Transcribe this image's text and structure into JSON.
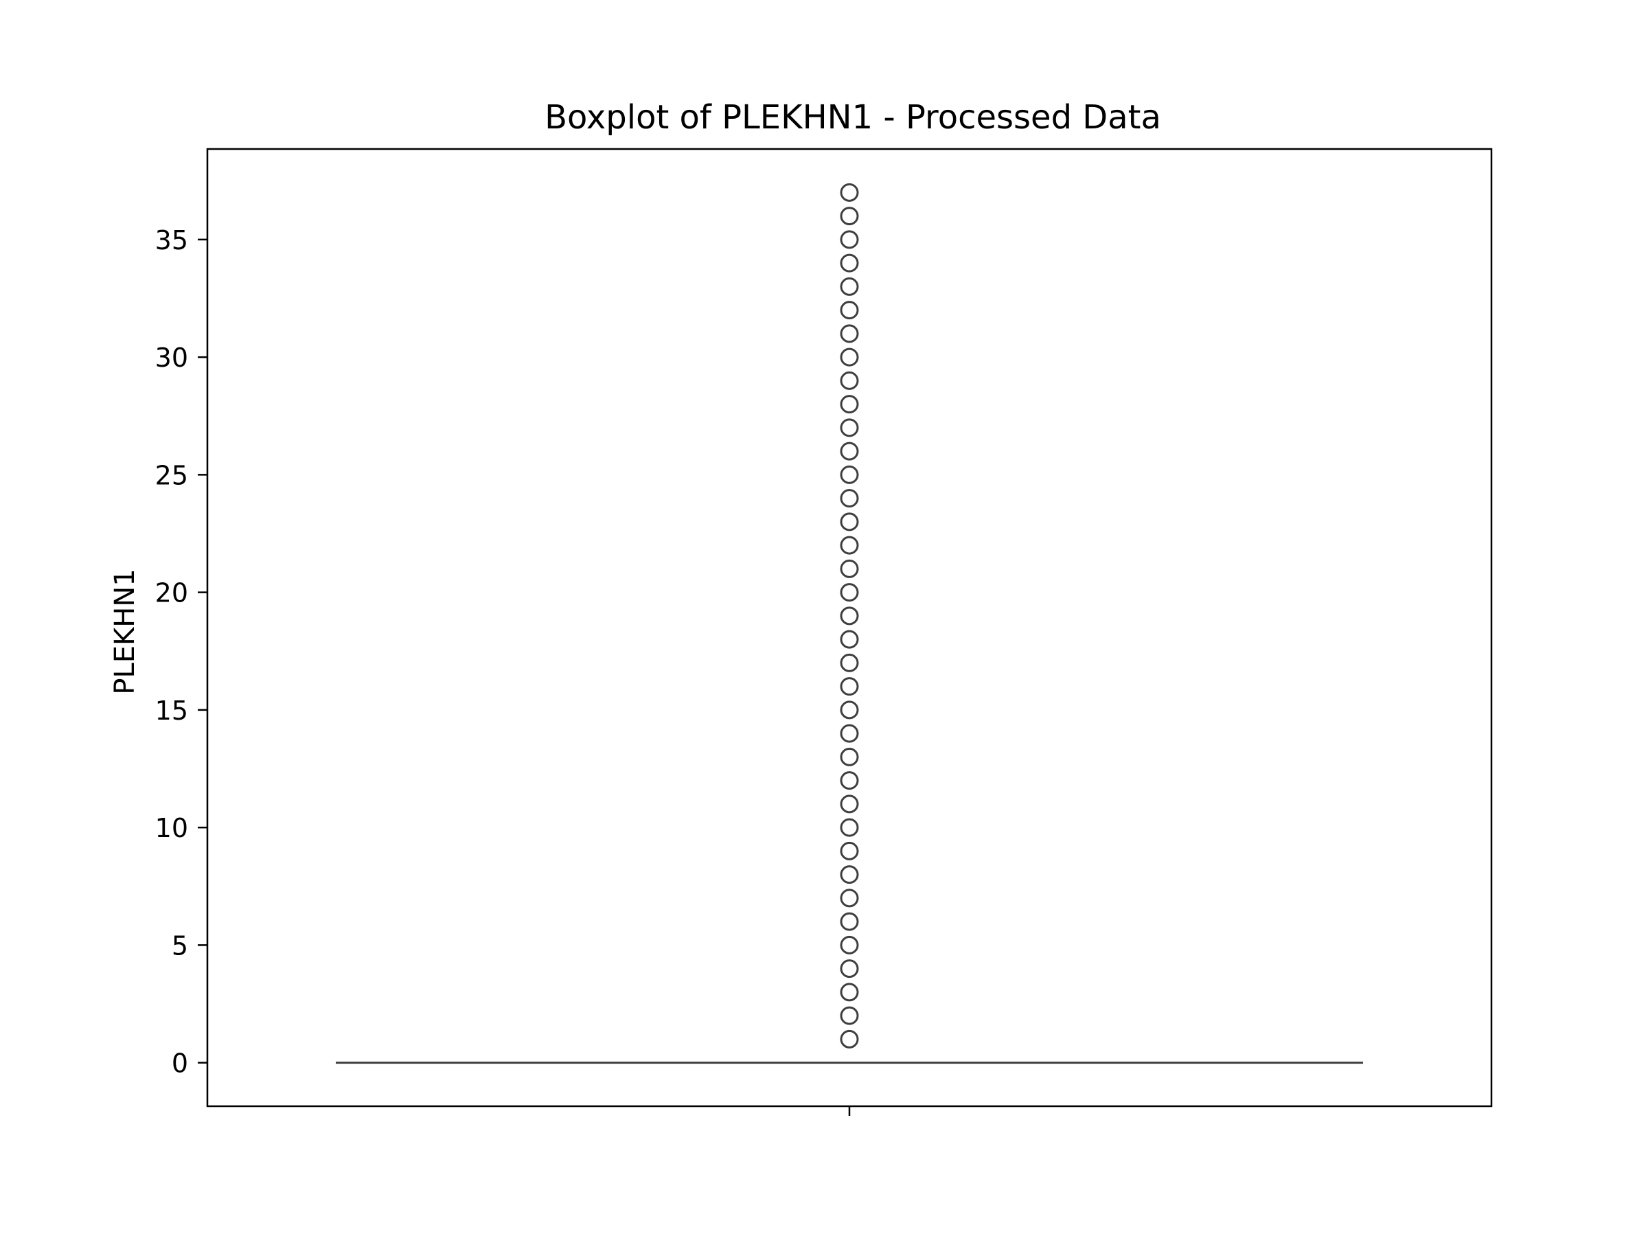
{
  "chart_data": {
    "type": "boxplot",
    "title": "Boxplot of PLEKHN1 - Processed Data",
    "xlabel": "",
    "ylabel": "PLEKHN1",
    "ylim": [
      -1.85,
      38.85
    ],
    "yticks": [
      0,
      5,
      10,
      15,
      20,
      25,
      30,
      35
    ],
    "grid": false,
    "box": {
      "q1": 0,
      "median": 0,
      "q3": 0,
      "whisker_low": 0,
      "whisker_high": 0
    },
    "outliers": [
      1,
      2,
      3,
      4,
      5,
      6,
      7,
      8,
      9,
      10,
      11,
      12,
      13,
      14,
      15,
      16,
      17,
      18,
      19,
      20,
      21,
      22,
      23,
      24,
      25,
      26,
      27,
      28,
      29,
      30,
      31,
      32,
      33,
      34,
      35,
      36,
      37
    ],
    "colors": {
      "box_line": "#3f3f3f",
      "axes": "#000000"
    }
  }
}
